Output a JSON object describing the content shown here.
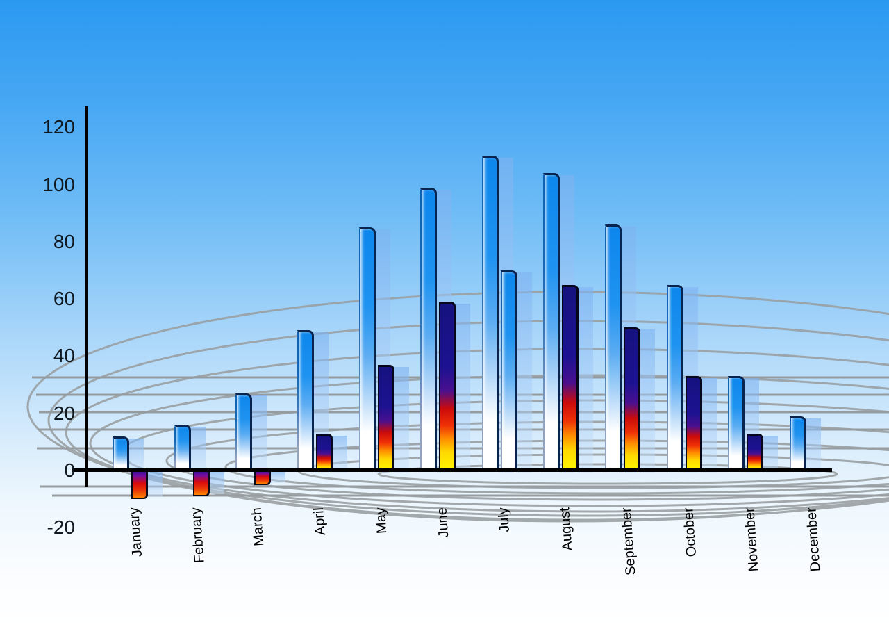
{
  "chart_data": {
    "type": "bar",
    "title": "",
    "xlabel": "",
    "ylabel": "",
    "categories": [
      "January",
      "February",
      "March",
      "April",
      "May",
      "June",
      "July",
      "August",
      "September",
      "October",
      "November",
      "December"
    ],
    "series": [
      {
        "name": "primary-blue-bars",
        "values": [
          12,
          16,
          27,
          49,
          85,
          99,
          110,
          104,
          86,
          65,
          33,
          19
        ]
      },
      {
        "name": "secondary-accent-bars",
        "values": [
          -10,
          -9,
          -5,
          13,
          37,
          59,
          70,
          65,
          50,
          33,
          13,
          null
        ],
        "bar_styles": [
          "negative",
          "negative",
          "negative",
          "fire",
          "fire",
          "fire",
          "blue",
          "fire",
          "fire",
          "fire",
          "fire",
          "none"
        ]
      }
    ],
    "y_ticks": [
      "120",
      "100",
      "80",
      "60",
      "40",
      "20",
      "0",
      "-20"
    ],
    "y_tick_values": [
      120,
      100,
      80,
      60,
      40,
      20,
      0,
      -20
    ],
    "ylim": [
      -20,
      120
    ],
    "legend_position": "none",
    "grid": "decorative-perspective-floor",
    "background": "sky-gradient"
  },
  "colors": {
    "sky_top": "#2b99f1",
    "sky_bottom": "#ffffff",
    "bar_blue_top": "#0c86ec",
    "bar_blue_bottom": "#ffffff",
    "bar_blue_outline": "#0a2450",
    "fire_navy": "#16127f",
    "fire_red": "#cb0b0b",
    "fire_yellow": "#fff800",
    "negative_top_navy": "#2c1095",
    "negative_red": "#d90a0a",
    "negative_bottom_orange": "#ff8400",
    "echo_bar": "#a9cdf3",
    "grid_line": "#9aa0a3",
    "axis": "#000000",
    "tick_text": "#101820"
  }
}
